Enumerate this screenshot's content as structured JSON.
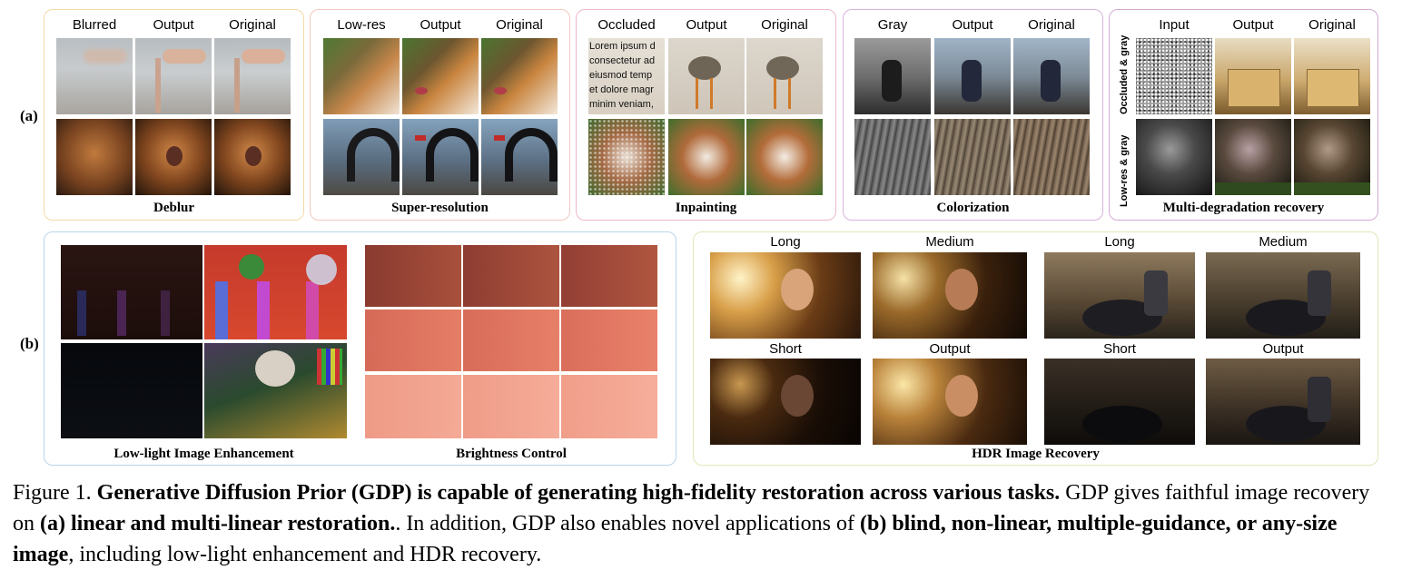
{
  "tags": {
    "a": "(a)",
    "b": "(b)"
  },
  "deblur": {
    "col1": "Blurred",
    "col2": "Output",
    "col3": "Original",
    "task": "Deblur"
  },
  "superres": {
    "col1": "Low-res",
    "col2": "Output",
    "col3": "Original",
    "task": "Super-resolution"
  },
  "inpaint": {
    "col1": "Occluded",
    "col2": "Output",
    "col3": "Original",
    "task": "Inpainting",
    "lorem": "Lorem ipsum d\nconsectetur ad\neiusmod temp\net dolore magr\nminim veniam,"
  },
  "color": {
    "col1": "Gray",
    "col2": "Output",
    "col3": "Original",
    "task": "Colorization"
  },
  "multi": {
    "col1": "Input",
    "col2": "Output",
    "col3": "Original",
    "row1": "Occluded & gray",
    "row2": "Low-res & gray",
    "task": "Multi-degradation recovery"
  },
  "lowlight": {
    "task": "Low-light Image Enhancement"
  },
  "brightness": {
    "task": "Brightness Control"
  },
  "hdr": {
    "task": "HDR Image Recovery",
    "long1": "Long",
    "medium1": "Medium",
    "long2": "Long",
    "medium2": "Medium",
    "short1": "Short",
    "output1": "Output",
    "short2": "Short",
    "output2": "Output"
  },
  "caption": {
    "prefix": "Figure 1. ",
    "bold1": "Generative Diffusion Prior (GDP) is capable of generating high-fidelity restoration across various tasks.",
    "text1": " GDP gives faithful image recovery on ",
    "bold2": "(a) linear and multi-linear restoration.",
    "text2": ". In addition, GDP also enables novel applications of ",
    "bold3": "(b) blind, non-linear, multiple-guidance, or any-size image",
    "text3": ", including low-light enhancement and HDR recovery."
  },
  "colors": {
    "deblur_border": "#f5d9a8",
    "superres_border": "#f2c7c0",
    "inpaint_border": "#eeb8c8",
    "color_border": "#d8b2dc",
    "multi_border": "#d6a9d6",
    "lowlight_border": "#b8d6e8",
    "hdr_border": "#e3e6b8"
  }
}
